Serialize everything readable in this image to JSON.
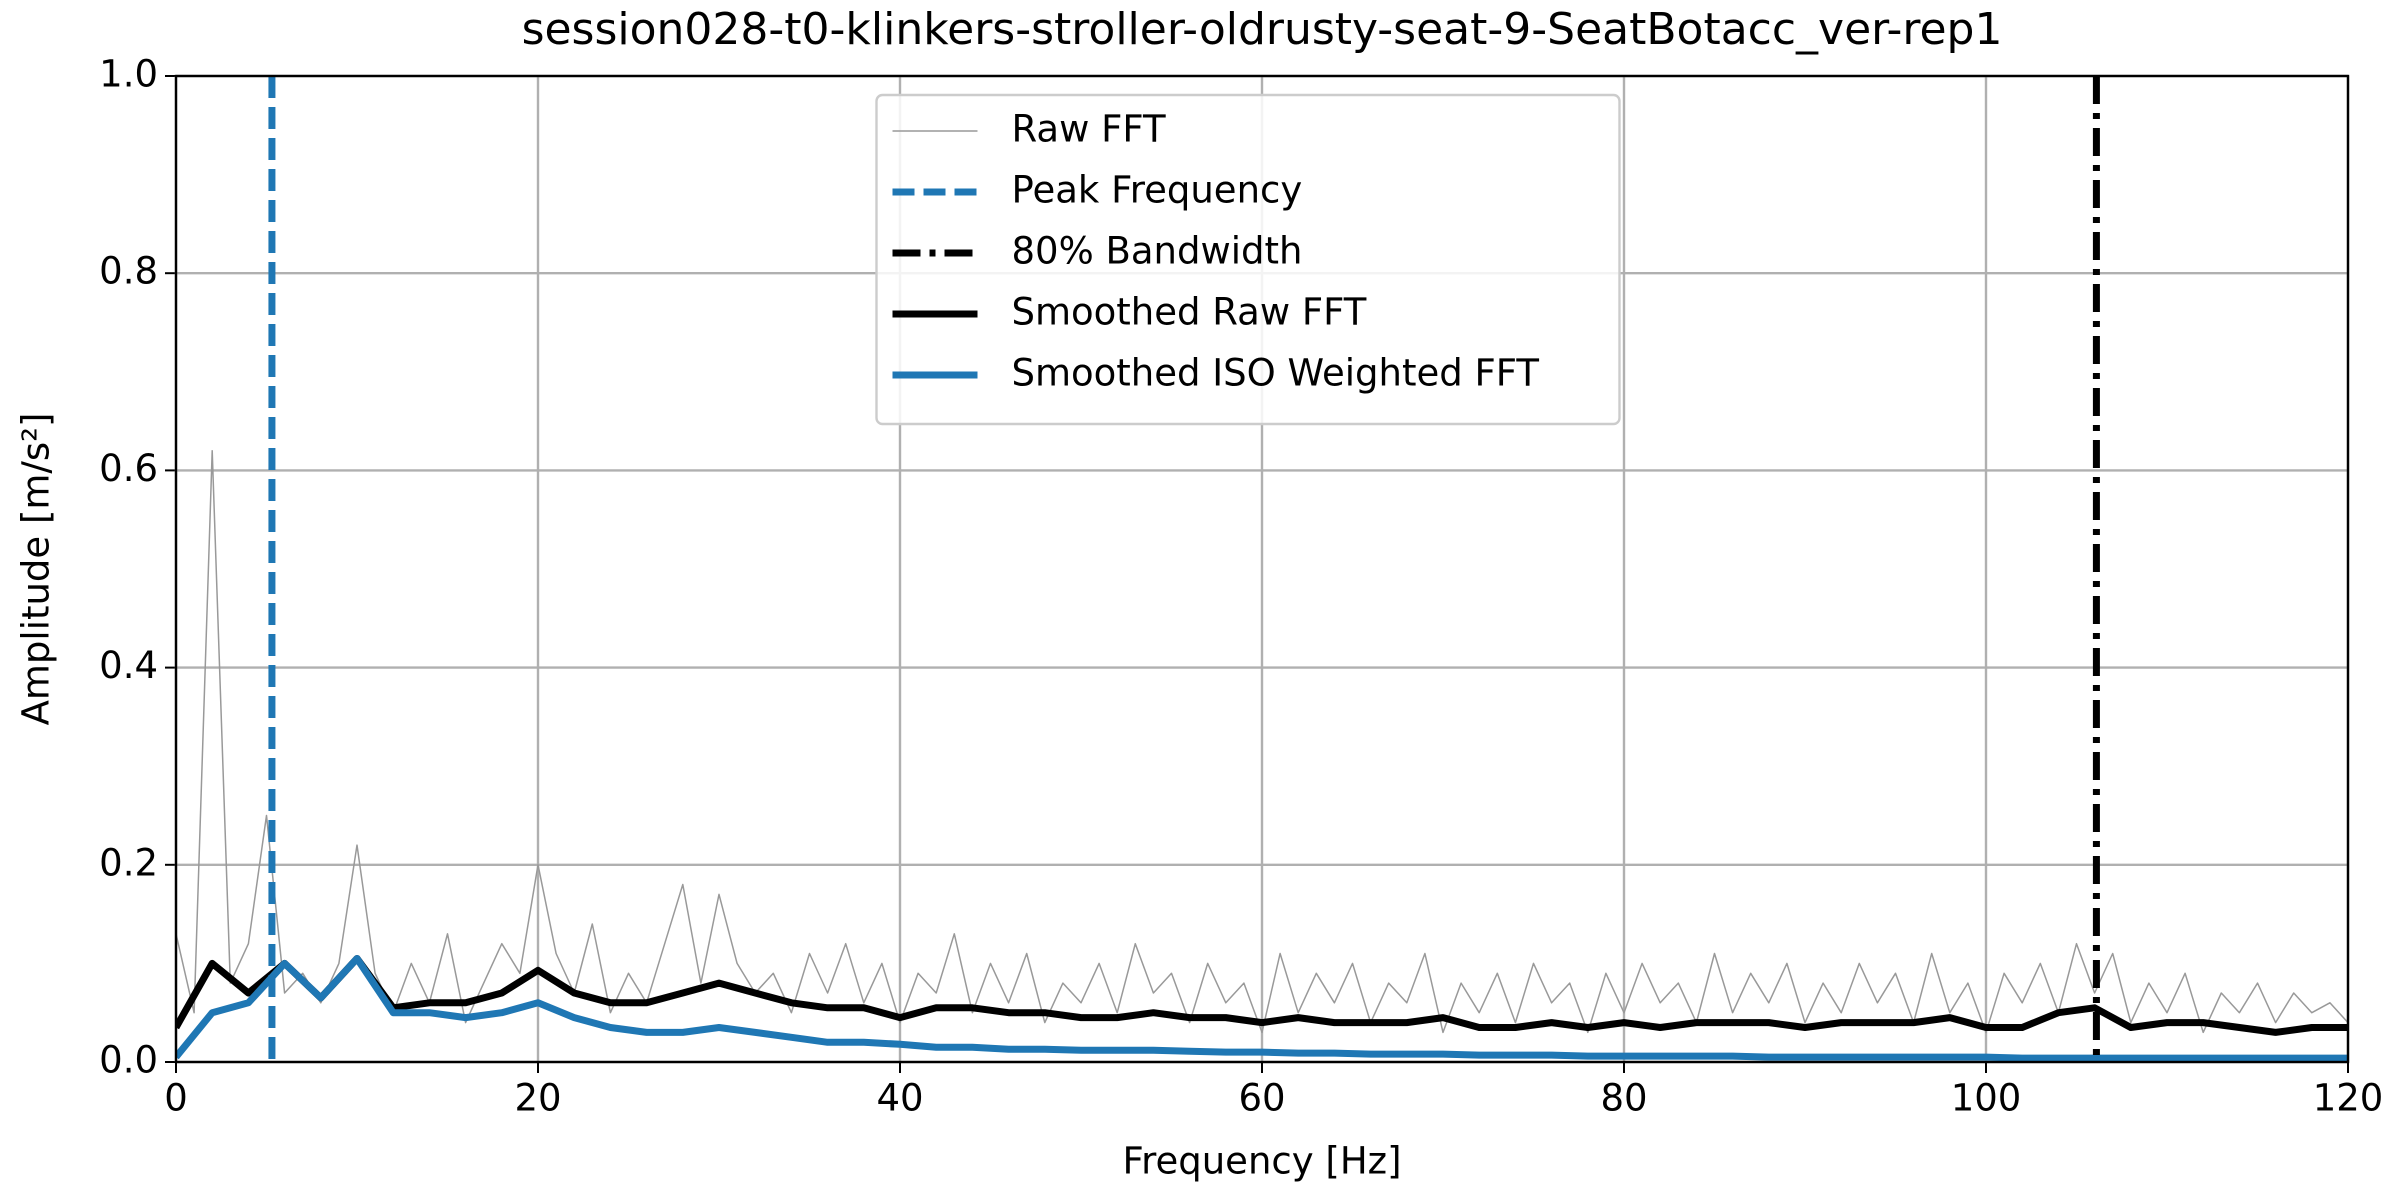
{
  "chart_data": {
    "type": "line",
    "title": "session028-t0-klinkers-stroller-oldrusty-seat-9-SeatBotacc_ver-rep1",
    "x_label": "Frequency [Hz]",
    "y_label": "Amplitude [m/s²]",
    "xlim": [
      0,
      120
    ],
    "xticks": [
      0,
      20,
      40,
      60,
      80,
      100,
      120
    ],
    "ylim": [
      0,
      1
    ],
    "yticks": [
      {
        "value": 0,
        "label": "0.0"
      },
      0.2,
      0.4,
      0.6,
      0.8,
      {
        "value": 1,
        "label": "1.0"
      }
    ],
    "grid": true,
    "legend": "upper center",
    "series": [
      {
        "name": "Raw FFT",
        "kind": "line",
        "color": "#999999",
        "width": 1.5,
        "x": [
          0,
          1,
          2,
          3,
          4,
          5,
          6,
          7,
          8,
          9,
          10,
          11,
          12,
          13,
          14,
          15,
          16,
          17,
          18,
          19,
          20,
          21,
          22,
          23,
          24,
          25,
          26,
          27,
          28,
          29,
          30,
          31,
          32,
          33,
          34,
          35,
          36,
          37,
          38,
          39,
          40,
          41,
          42,
          43,
          44,
          45,
          46,
          47,
          48,
          49,
          50,
          51,
          52,
          53,
          54,
          55,
          56,
          57,
          58,
          59,
          60,
          61,
          62,
          63,
          64,
          65,
          66,
          67,
          68,
          69,
          70,
          71,
          72,
          73,
          74,
          75,
          76,
          77,
          78,
          79,
          80,
          81,
          82,
          83,
          84,
          85,
          86,
          87,
          88,
          89,
          90,
          91,
          92,
          93,
          94,
          95,
          96,
          97,
          98,
          99,
          100,
          101,
          102,
          103,
          104,
          105,
          106,
          107,
          108,
          109,
          110,
          111,
          112,
          113,
          114,
          115,
          116,
          117,
          118,
          119,
          120
        ],
        "values": [
          0.13,
          0.05,
          0.62,
          0.08,
          0.12,
          0.25,
          0.07,
          0.09,
          0.06,
          0.1,
          0.22,
          0.09,
          0.05,
          0.1,
          0.06,
          0.13,
          0.04,
          0.08,
          0.12,
          0.09,
          0.2,
          0.11,
          0.07,
          0.14,
          0.05,
          0.09,
          0.06,
          0.12,
          0.18,
          0.08,
          0.17,
          0.1,
          0.07,
          0.09,
          0.05,
          0.11,
          0.07,
          0.12,
          0.06,
          0.1,
          0.04,
          0.09,
          0.07,
          0.13,
          0.05,
          0.1,
          0.06,
          0.11,
          0.04,
          0.08,
          0.06,
          0.1,
          0.05,
          0.12,
          0.07,
          0.09,
          0.04,
          0.1,
          0.06,
          0.08,
          0.03,
          0.11,
          0.05,
          0.09,
          0.06,
          0.1,
          0.04,
          0.08,
          0.06,
          0.11,
          0.03,
          0.08,
          0.05,
          0.09,
          0.04,
          0.1,
          0.06,
          0.08,
          0.03,
          0.09,
          0.05,
          0.1,
          0.06,
          0.08,
          0.04,
          0.11,
          0.05,
          0.09,
          0.06,
          0.1,
          0.04,
          0.08,
          0.05,
          0.1,
          0.06,
          0.09,
          0.04,
          0.11,
          0.05,
          0.08,
          0.03,
          0.09,
          0.06,
          0.1,
          0.05,
          0.12,
          0.07,
          0.11,
          0.04,
          0.08,
          0.05,
          0.09,
          0.03,
          0.07,
          0.05,
          0.08,
          0.04,
          0.07,
          0.05,
          0.06,
          0.04
        ]
      },
      {
        "name": "Peak Frequency",
        "kind": "vline",
        "color": "#1f77b4",
        "width": 7,
        "dash": "22 9",
        "value": 5.3
      },
      {
        "name": "80% Bandwidth",
        "kind": "vline",
        "color": "#000000",
        "width": 7,
        "dash": "28 9 6 9",
        "value": 106.1
      },
      {
        "name": "Smoothed Raw FFT",
        "kind": "line",
        "color": "#000000",
        "width": 7,
        "x": [
          0,
          2,
          4,
          6,
          8,
          10,
          12,
          14,
          16,
          18,
          20,
          22,
          24,
          26,
          28,
          30,
          32,
          34,
          36,
          38,
          40,
          42,
          44,
          46,
          48,
          50,
          52,
          54,
          56,
          58,
          60,
          62,
          64,
          66,
          68,
          70,
          72,
          74,
          76,
          78,
          80,
          82,
          84,
          86,
          88,
          90,
          92,
          94,
          96,
          98,
          100,
          102,
          104,
          106,
          108,
          110,
          112,
          114,
          116,
          118,
          120
        ],
        "values": [
          0.035,
          0.1,
          0.07,
          0.1,
          0.065,
          0.105,
          0.055,
          0.06,
          0.06,
          0.07,
          0.093,
          0.07,
          0.06,
          0.06,
          0.07,
          0.08,
          0.07,
          0.06,
          0.055,
          0.055,
          0.045,
          0.055,
          0.055,
          0.05,
          0.05,
          0.045,
          0.045,
          0.05,
          0.045,
          0.045,
          0.04,
          0.045,
          0.04,
          0.04,
          0.04,
          0.045,
          0.035,
          0.035,
          0.04,
          0.035,
          0.04,
          0.035,
          0.04,
          0.04,
          0.04,
          0.035,
          0.04,
          0.04,
          0.04,
          0.045,
          0.035,
          0.035,
          0.05,
          0.055,
          0.035,
          0.04,
          0.04,
          0.035,
          0.03,
          0.035,
          0.035
        ]
      },
      {
        "name": "Smoothed ISO Weighted FFT",
        "kind": "line",
        "color": "#1f77b4",
        "width": 7,
        "x": [
          0,
          2,
          4,
          6,
          8,
          10,
          12,
          14,
          16,
          18,
          20,
          22,
          24,
          26,
          28,
          30,
          32,
          34,
          36,
          38,
          40,
          42,
          44,
          46,
          48,
          50,
          52,
          54,
          56,
          58,
          60,
          62,
          64,
          66,
          68,
          70,
          72,
          74,
          76,
          78,
          80,
          82,
          84,
          86,
          88,
          90,
          92,
          94,
          96,
          98,
          100,
          102,
          104,
          106,
          108,
          110,
          112,
          114,
          116,
          118,
          120
        ],
        "values": [
          0.005,
          0.05,
          0.06,
          0.1,
          0.065,
          0.105,
          0.05,
          0.05,
          0.045,
          0.05,
          0.06,
          0.045,
          0.035,
          0.03,
          0.03,
          0.035,
          0.03,
          0.025,
          0.02,
          0.02,
          0.018,
          0.015,
          0.015,
          0.013,
          0.013,
          0.012,
          0.012,
          0.012,
          0.011,
          0.01,
          0.01,
          0.009,
          0.009,
          0.008,
          0.008,
          0.008,
          0.007,
          0.007,
          0.007,
          0.006,
          0.006,
          0.006,
          0.006,
          0.006,
          0.005,
          0.005,
          0.005,
          0.005,
          0.005,
          0.005,
          0.005,
          0.004,
          0.004,
          0.004,
          0.004,
          0.004,
          0.004,
          0.004,
          0.004,
          0.004,
          0.004
        ]
      }
    ]
  }
}
